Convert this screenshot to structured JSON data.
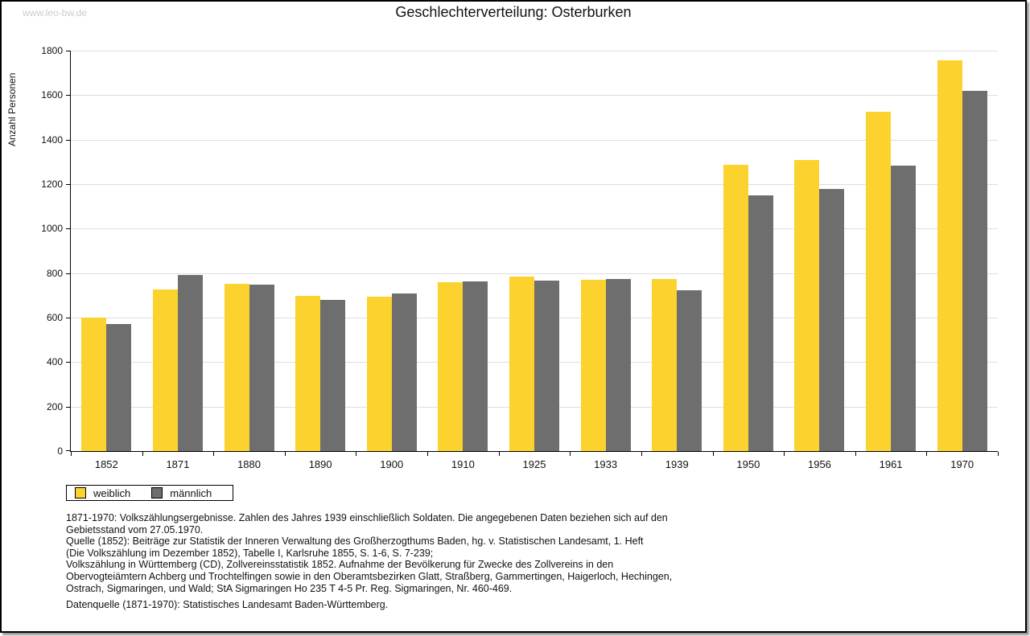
{
  "page": {
    "watermark": "www.leo-bw.de",
    "title": "Geschlechterverteilung: Osterburken"
  },
  "chart_data": {
    "type": "bar",
    "title": "Geschlechterverteilung: Osterburken",
    "xlabel": "",
    "ylabel": "Anzahl Personen",
    "ylim": [
      0,
      1800
    ],
    "ytick_step": 200,
    "grid": true,
    "legend_position": "bottom-left",
    "categories": [
      "1852",
      "1871",
      "1880",
      "1890",
      "1900",
      "1910",
      "1925",
      "1933",
      "1939",
      "1950",
      "1956",
      "1961",
      "1970"
    ],
    "series": [
      {
        "name": "weiblich",
        "color": "#FCD32E",
        "values": [
          601,
          728,
          751,
          698,
          694,
          758,
          786,
          769,
          772,
          1288,
          1310,
          1527,
          1757
        ]
      },
      {
        "name": "männlich",
        "color": "#6E6E6E",
        "values": [
          573,
          791,
          748,
          680,
          710,
          762,
          766,
          774,
          723,
          1151,
          1180,
          1284,
          1620
        ]
      }
    ]
  },
  "footnote": {
    "lines": [
      "1871-1970: Volkszählungsergebnisse. Zahlen des Jahres 1939 einschließlich Soldaten. Die angegebenen Daten beziehen sich auf den",
      "Gebietsstand vom 27.05.1970.",
      "Quelle (1852): Beiträge zur Statistik der Inneren Verwaltung des Großherzogthums Baden, hg. v. Statistischen Landesamt, 1. Heft",
      "(Die Volkszählung im Dezember 1852), Tabelle I, Karlsruhe 1855, S. 1-6, S. 7-239;",
      "Volkszählung in Württemberg (CD), Zollvereinsstatistik 1852. Aufnahme der Bevölkerung für Zwecke des Zollvereins in den",
      "Obervogteiämtern Achberg und Trochtelfingen sowie in den Oberamtsbezirken Glatt, Straßberg, Gammertingen, Haigerloch, Hechingen,",
      "Ostrach, Sigmaringen, und Wald; StA Sigmaringen Ho 235 T 4-5 Pr. Reg. Sigmaringen, Nr. 460-469."
    ],
    "datasource": "Datenquelle (1871-1970): Statistisches Landesamt Baden-Württemberg."
  },
  "colors": {
    "female_bar": "#FCD32E",
    "male_bar": "#6E6E6E",
    "gridline": "#DDDDDD",
    "watermark": "#CCCCCC",
    "frame_border": "#000000",
    "frame_shadow": "#9A9A9A"
  }
}
